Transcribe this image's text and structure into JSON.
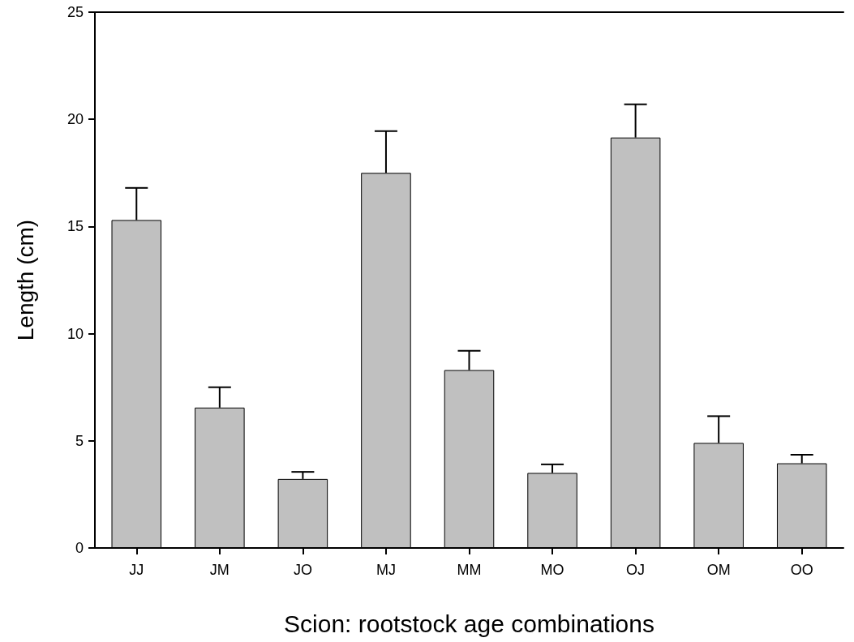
{
  "chart_data": {
    "type": "bar",
    "xlabel": "Scion: rootstock age combinations",
    "ylabel": "Length (cm)",
    "categories": [
      "JJ",
      "JM",
      "JO",
      "MJ",
      "MM",
      "MO",
      "OJ",
      "OM",
      "OO"
    ],
    "values": [
      15.3,
      6.55,
      3.22,
      17.5,
      8.3,
      3.5,
      19.15,
      4.9,
      3.95
    ],
    "errors": [
      [
        15.3,
        16.8
      ],
      [
        6.55,
        7.5
      ],
      [
        3.22,
        3.55
      ],
      [
        17.5,
        19.45
      ],
      [
        8.3,
        9.2
      ],
      [
        3.5,
        3.9
      ],
      [
        19.15,
        20.7
      ],
      [
        4.9,
        6.15
      ],
      [
        3.95,
        4.35
      ]
    ],
    "color": "#c0c0c0",
    "ylim": [
      0,
      25
    ],
    "yticks": [
      0,
      5,
      10,
      15,
      20,
      25
    ]
  }
}
